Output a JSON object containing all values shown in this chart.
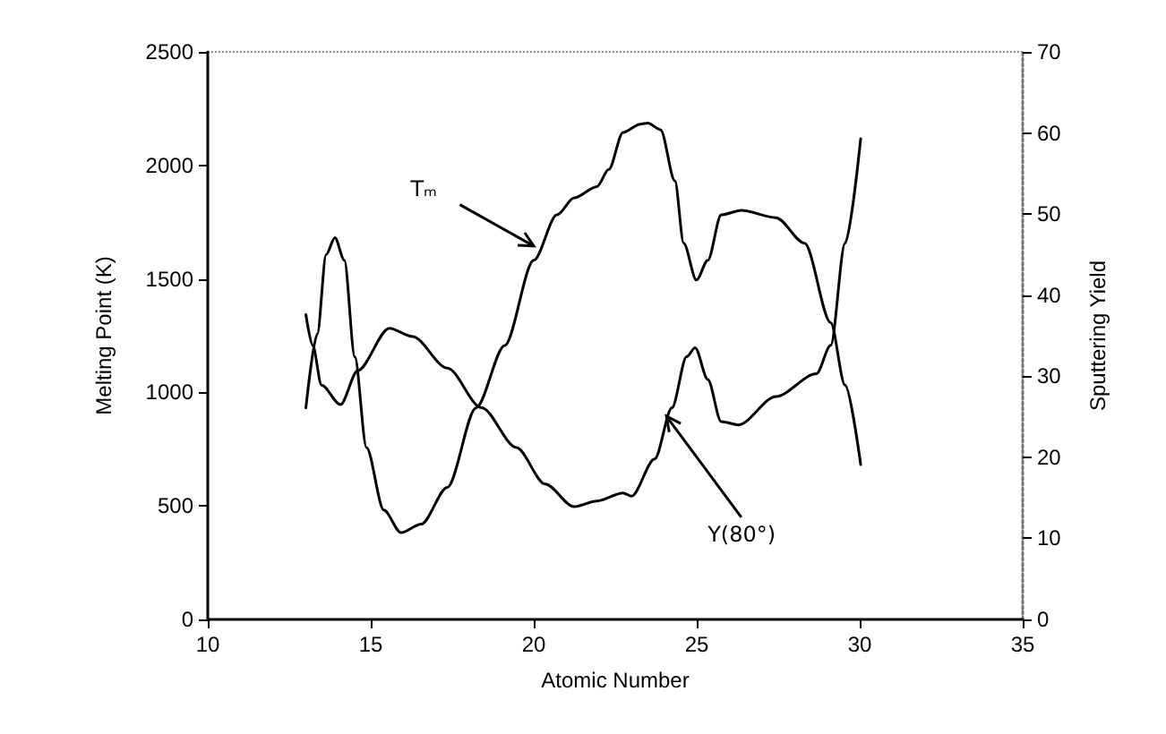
{
  "chart_data": {
    "type": "line",
    "xlabel": "Atomic Number",
    "ylabel": "Melting Point (K)",
    "y2label": "Sputtering Yield",
    "xlim": [
      10,
      35
    ],
    "xticks": [
      10,
      15,
      20,
      25,
      30,
      35
    ],
    "ylim": [
      0,
      2500
    ],
    "yticks": [
      0,
      500,
      1000,
      1500,
      2000,
      2500
    ],
    "y2lim": [
      0,
      70
    ],
    "y2ticks": [
      0,
      10,
      20,
      30,
      40,
      50,
      60,
      70
    ],
    "grid": false,
    "series": [
      {
        "color": "#000000",
        "x": [
          13.01,
          13.36,
          13.63,
          13.9,
          14.19,
          14.51,
          14.87,
          15.4,
          15.93,
          16.55,
          17.35,
          18.23,
          19.11,
          20,
          20.71,
          21.24,
          21.94,
          22.3,
          22.74,
          23.27,
          23.5,
          23.89,
          24.33,
          24.6,
          24.99,
          25.34,
          25.75,
          26.37,
          27.43,
          28.31,
          29.11,
          29.55,
          30.03
        ],
        "values": [
          932,
          1257,
          1607,
          1682,
          1582,
          1157,
          757,
          482,
          382,
          420,
          582,
          932,
          1207,
          1582,
          1782,
          1857,
          1907,
          1982,
          2145,
          2182,
          2187,
          2157,
          1932,
          1657,
          1495,
          1582,
          1782,
          1802,
          1770,
          1657,
          1307,
          1032,
          682
        ]
      },
      {
        "color": "#000000",
        "axis": "y2",
        "x": [
          13.01,
          13.22,
          13.49,
          14.07,
          14.6,
          15.57,
          16.28,
          17.35,
          18.4,
          19.47,
          20.35,
          21.24,
          21.94,
          22.74,
          23.0,
          23.71,
          24.24,
          24.69,
          24.95,
          25.34,
          25.75,
          26.28,
          27.43,
          28.67,
          29.11,
          29.55,
          30.03
        ],
        "values": [
          37.6,
          33.8,
          28.9,
          26.5,
          30.7,
          35.9,
          34.9,
          31,
          26.1,
          21.2,
          16.7,
          13.9,
          14.6,
          15.6,
          15.2,
          19.8,
          26.1,
          32.4,
          33.5,
          29.6,
          24.4,
          24,
          27.5,
          30.3,
          33.8,
          46.4,
          59.3
        ]
      }
    ],
    "annotations": [
      {
        "text": "Tₘ",
        "x": 20,
        "y": 1645
      },
      {
        "text": "Y(80°)",
        "x": 24.07,
        "y": 895
      }
    ]
  }
}
